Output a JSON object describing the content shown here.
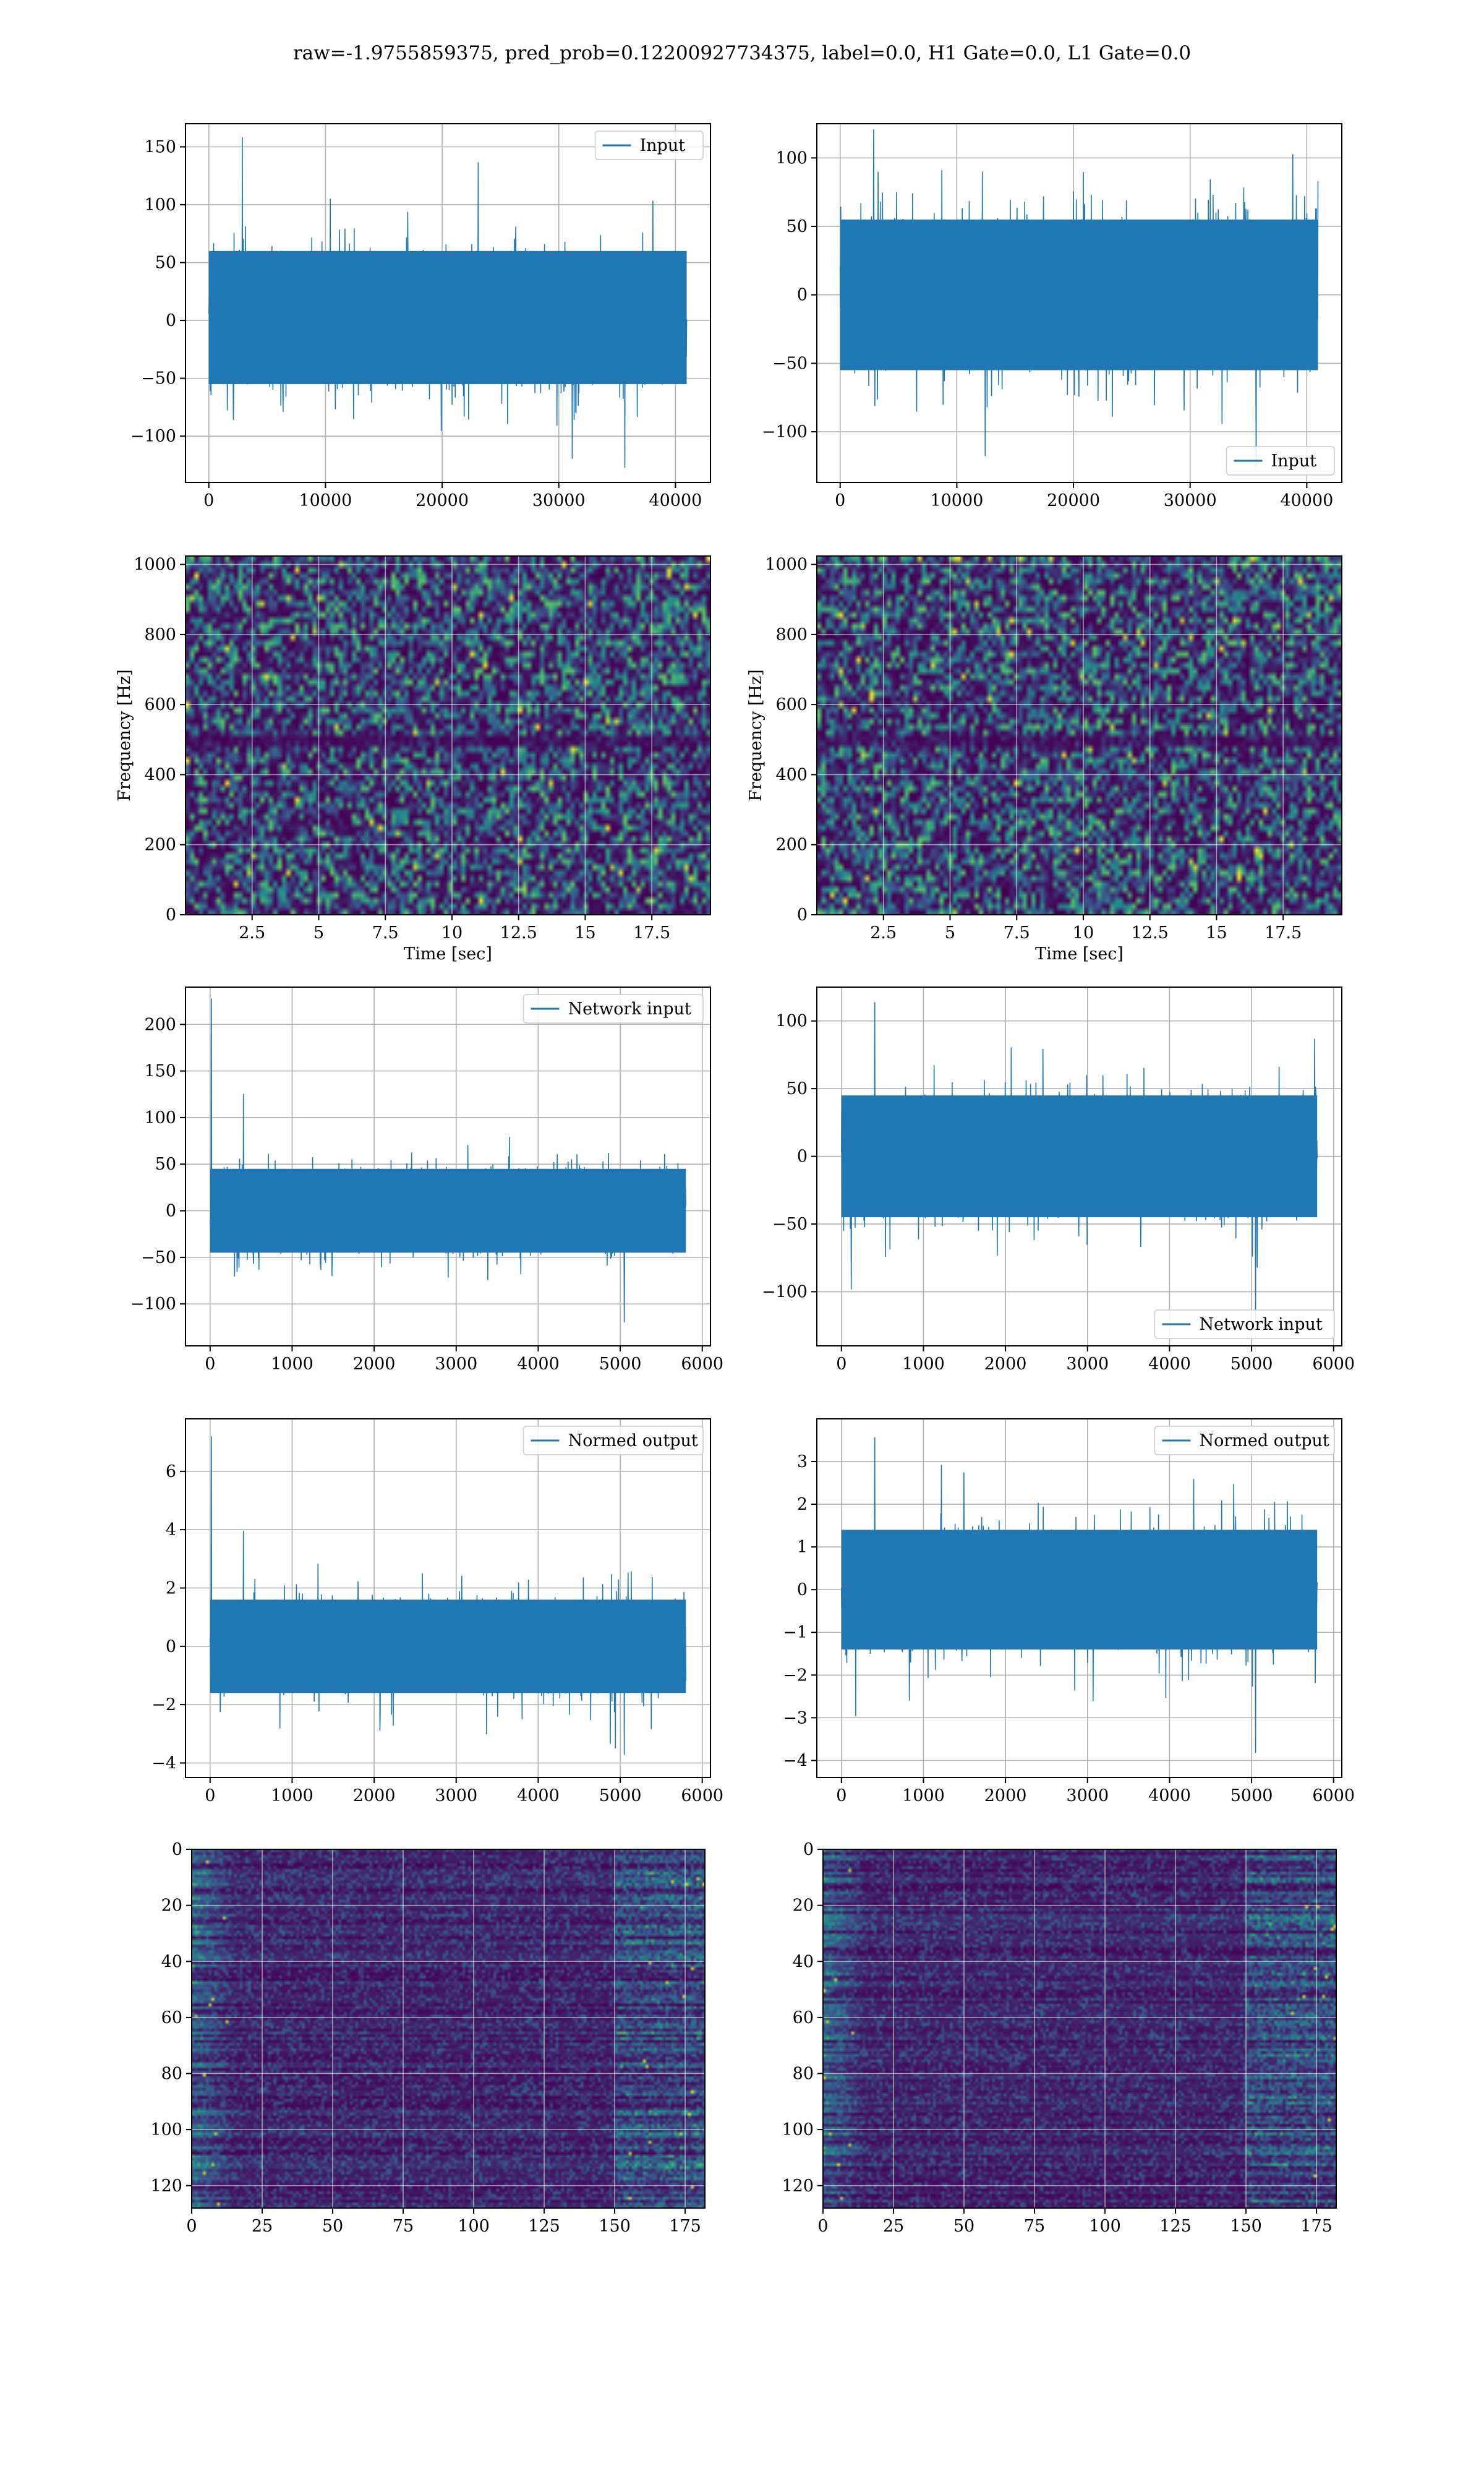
{
  "figure": {
    "title": "raw=-1.9755859375, pred_prob=0.12200927734375, label=0.0, H1 Gate=0.0, L1 Gate=0.0",
    "colors": {
      "line": "#1f77b4",
      "grid": "#b0b0b0",
      "axes": "#000000",
      "heat_low": "#440154",
      "heat_high": "#fde725"
    }
  },
  "chart_data": [
    {
      "id": "input-h1",
      "type": "line",
      "series": [
        {
          "name": "Input",
          "values_summary": {
            "n": 40960,
            "center": 0,
            "band": [
              -55,
              60
            ],
            "max": 160,
            "min": -130
          }
        }
      ],
      "xlim": [
        -2000,
        43000
      ],
      "ylim": [
        -140,
        170
      ],
      "xticks": [
        0,
        10000,
        20000,
        30000,
        40000
      ],
      "yticks": [
        -100,
        -50,
        0,
        50,
        100,
        150
      ],
      "legend": "upper right",
      "grid": true
    },
    {
      "id": "input-l1",
      "type": "line",
      "series": [
        {
          "name": "Input",
          "values_summary": {
            "n": 40960,
            "center": 0,
            "band": [
              -55,
              55
            ],
            "max": 122,
            "min": -128
          }
        }
      ],
      "xlim": [
        -2000,
        43000
      ],
      "ylim": [
        -137,
        125
      ],
      "xticks": [
        0,
        10000,
        20000,
        30000,
        40000
      ],
      "yticks": [
        -100,
        -50,
        0,
        50,
        100
      ],
      "legend": "lower right",
      "grid": true
    },
    {
      "id": "spec-h1",
      "type": "heatmap",
      "xlim": [
        0,
        19.7
      ],
      "ylim": [
        0,
        1024
      ],
      "xticks": [
        2.5,
        5.0,
        7.5,
        10.0,
        12.5,
        15.0,
        17.5
      ],
      "yticks": [
        0,
        200,
        400,
        600,
        800,
        1000
      ],
      "xlabel": "Time [sec]",
      "ylabel": "Frequency [Hz]",
      "grid": true,
      "dark_band_hz": [
        480,
        505
      ]
    },
    {
      "id": "spec-l1",
      "type": "heatmap",
      "xlim": [
        0,
        19.7
      ],
      "ylim": [
        0,
        1024
      ],
      "xticks": [
        2.5,
        5.0,
        7.5,
        10.0,
        12.5,
        15.0,
        17.5
      ],
      "yticks": [
        0,
        200,
        400,
        600,
        800,
        1000
      ],
      "xlabel": "Time [sec]",
      "ylabel": "Frequency [Hz]",
      "grid": true,
      "dark_band_hz": [
        480,
        505
      ]
    },
    {
      "id": "net-h1",
      "type": "line",
      "series": [
        {
          "name": "Network input",
          "values_summary": {
            "n": 5800,
            "center": 0,
            "band": [
              -45,
              45
            ],
            "max": 228,
            "min": -122
          }
        }
      ],
      "xlim": [
        -300,
        6100
      ],
      "ylim": [
        -145,
        240
      ],
      "xticks": [
        0,
        1000,
        2000,
        3000,
        4000,
        5000,
        6000
      ],
      "yticks": [
        -100,
        -50,
        0,
        50,
        100,
        150,
        200
      ],
      "legend": "upper right",
      "grid": true
    },
    {
      "id": "net-l1",
      "type": "line",
      "series": [
        {
          "name": "Network input",
          "values_summary": {
            "n": 5800,
            "center": 0,
            "band": [
              -45,
              45
            ],
            "max": 115,
            "min": -125
          }
        }
      ],
      "xlim": [
        -300,
        6100
      ],
      "ylim": [
        -140,
        125
      ],
      "xticks": [
        0,
        1000,
        2000,
        3000,
        4000,
        5000,
        6000
      ],
      "yticks": [
        -100,
        -50,
        0,
        50,
        100
      ],
      "legend": "lower right",
      "grid": true
    },
    {
      "id": "norm-h1",
      "type": "line",
      "series": [
        {
          "name": "Normed output",
          "values_summary": {
            "n": 5800,
            "center": 0,
            "band": [
              -1.6,
              1.6
            ],
            "max": 7.2,
            "min": -3.8
          }
        }
      ],
      "xlim": [
        -300,
        6100
      ],
      "ylim": [
        -4.5,
        7.8
      ],
      "xticks": [
        0,
        1000,
        2000,
        3000,
        4000,
        5000,
        6000
      ],
      "yticks": [
        -4,
        -2,
        0,
        2,
        4,
        6
      ],
      "legend": "upper right",
      "grid": true
    },
    {
      "id": "norm-l1",
      "type": "line",
      "series": [
        {
          "name": "Normed output",
          "values_summary": {
            "n": 5800,
            "center": 0,
            "band": [
              -1.4,
              1.4
            ],
            "max": 3.6,
            "min": -3.9
          }
        }
      ],
      "xlim": [
        -300,
        6100
      ],
      "ylim": [
        -4.4,
        4.0
      ],
      "xticks": [
        0,
        1000,
        2000,
        3000,
        4000,
        5000,
        6000
      ],
      "yticks": [
        -4,
        -3,
        -2,
        -1,
        0,
        1,
        2,
        3
      ],
      "legend": "upper right",
      "grid": true
    },
    {
      "id": "feat-h1",
      "type": "heatmap",
      "xlim": [
        0,
        182
      ],
      "ylim": [
        128,
        0
      ],
      "xticks": [
        0,
        25,
        50,
        75,
        100,
        125,
        150,
        175
      ],
      "yticks": [
        0,
        20,
        40,
        60,
        80,
        100,
        120
      ],
      "grid": true
    },
    {
      "id": "feat-l1",
      "type": "heatmap",
      "xlim": [
        0,
        182
      ],
      "ylim": [
        128,
        0
      ],
      "xticks": [
        0,
        25,
        50,
        75,
        100,
        125,
        150,
        175
      ],
      "yticks": [
        0,
        20,
        40,
        60,
        80,
        100,
        120
      ],
      "grid": true
    }
  ]
}
